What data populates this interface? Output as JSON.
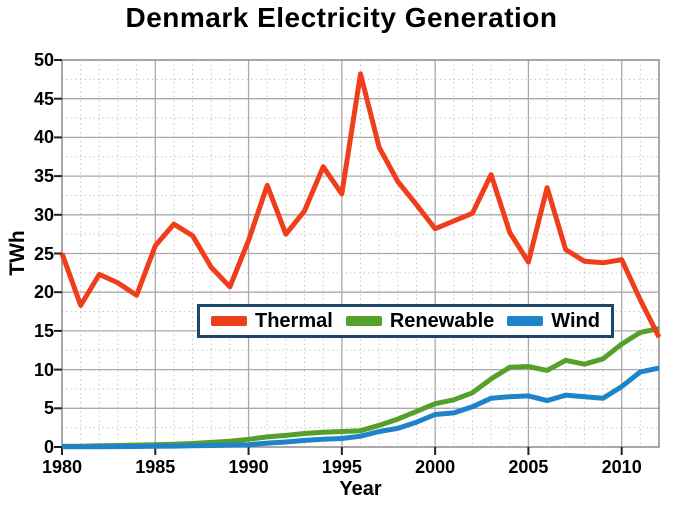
{
  "chart_data": {
    "type": "line",
    "title": "Denmark Electricity Generation",
    "xlabel": "Year",
    "ylabel": "TWh",
    "xlim": [
      1980,
      2012
    ],
    "ylim": [
      0,
      50
    ],
    "x_ticks": [
      1980,
      1985,
      1990,
      1995,
      2000,
      2005,
      2010
    ],
    "y_ticks": [
      0,
      5,
      10,
      15,
      20,
      25,
      30,
      35,
      40,
      45,
      50
    ],
    "grid": "major solid gray every 5 units, minor dotted yearly / every 2.5 TWh",
    "legend_position": "inside plot, centered, around y=15-17 TWh",
    "x": [
      1980,
      1981,
      1982,
      1983,
      1984,
      1985,
      1986,
      1987,
      1988,
      1989,
      1990,
      1991,
      1992,
      1993,
      1994,
      1995,
      1996,
      1997,
      1998,
      1999,
      2000,
      2001,
      2002,
      2003,
      2004,
      2005,
      2006,
      2007,
      2008,
      2009,
      2010,
      2011,
      2012
    ],
    "series": [
      {
        "name": "Thermal",
        "color": "#EE3E1B",
        "values": [
          25.0,
          18.3,
          22.3,
          21.2,
          19.6,
          26.0,
          28.8,
          27.3,
          23.2,
          20.7,
          26.7,
          33.8,
          27.5,
          30.5,
          36.2,
          32.7,
          48.2,
          38.7,
          34.3,
          31.3,
          28.2,
          29.2,
          30.2,
          35.2,
          27.7,
          23.9,
          33.5,
          25.5,
          24.0,
          23.8,
          24.2,
          19.0,
          14.2
        ]
      },
      {
        "name": "Renewable",
        "color": "#55A02A",
        "values": [
          0.1,
          0.1,
          0.15,
          0.2,
          0.25,
          0.3,
          0.35,
          0.45,
          0.6,
          0.75,
          1.0,
          1.3,
          1.5,
          1.75,
          1.9,
          2.0,
          2.1,
          2.8,
          3.6,
          4.6,
          5.6,
          6.1,
          7.0,
          8.8,
          10.3,
          10.4,
          9.9,
          11.2,
          10.7,
          11.4,
          13.3,
          14.8,
          15.3
        ]
      },
      {
        "name": "Wind",
        "color": "#1F83C9",
        "values": [
          0.02,
          0.03,
          0.04,
          0.05,
          0.07,
          0.1,
          0.12,
          0.15,
          0.2,
          0.25,
          0.3,
          0.5,
          0.65,
          0.85,
          1.0,
          1.1,
          1.4,
          2.0,
          2.4,
          3.2,
          4.2,
          4.4,
          5.2,
          6.3,
          6.5,
          6.6,
          6.0,
          6.7,
          6.5,
          6.3,
          7.8,
          9.7,
          10.2
        ]
      }
    ],
    "colors": {
      "major_grid": "#A9A9A9",
      "minor_grid": "#C9C9C9",
      "plot_border": "#8C8C8C",
      "tick_mark": "#222222",
      "legend_border": "#1B4569",
      "title_text": "#000000"
    }
  }
}
